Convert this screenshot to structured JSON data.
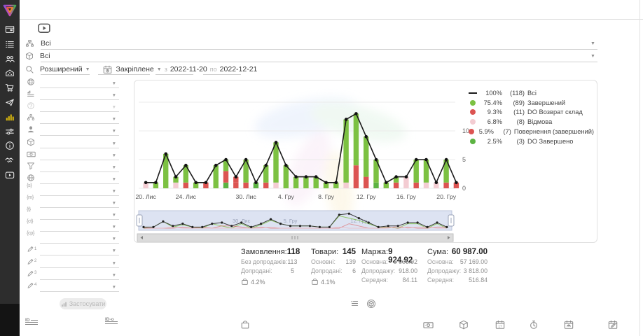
{
  "theme": {
    "sidebar_bg": "#2d2d2d",
    "active_icon": "#d9b70d",
    "line_color": "#1b1b1b",
    "green": "#7cc142",
    "dark_green": "#5cb342",
    "red": "#dc5452",
    "pink": "#f3ccd2",
    "minimap_bg": "#dde3f2"
  },
  "sidebar": {
    "logo": "app-logo",
    "items": [
      {
        "icon": "dashboard-panel-icon"
      },
      {
        "icon": "orders-list-icon"
      },
      {
        "icon": "clients-icon"
      },
      {
        "icon": "company-icon"
      },
      {
        "icon": "procurement-cart-icon"
      },
      {
        "icon": "marketing-send-icon"
      },
      {
        "icon": "analytics-chart-icon",
        "active": true
      },
      {
        "icon": "settings-sliders-icon"
      },
      {
        "icon": "info-icon"
      },
      {
        "icon": "partners-handshake-icon"
      },
      {
        "icon": "video-lessons-icon"
      }
    ]
  },
  "topbar": {
    "video_button_icon": "play-video-icon",
    "department_filter": {
      "icon": "department-structure-icon",
      "value": "Всі"
    },
    "product_filter": {
      "icon": "product-package-icon",
      "value": "Всі"
    },
    "search_mode": {
      "icon": "search-icon",
      "value": "Розширений"
    },
    "period_mode": {
      "icon": "calendar-pinned-icon",
      "value": "Закріплене"
    },
    "from_label": "з",
    "date_from": "2022-11-20",
    "to_label": "по",
    "date_to": "2022-12-21"
  },
  "filters": {
    "rows": [
      {
        "icon": "country-globe-icon"
      },
      {
        "icon": "status-group-icon"
      },
      {
        "icon": "help-circle-icon",
        "disabled": true
      },
      {
        "icon": "structure-tree-icon"
      },
      {
        "icon": "manager-person-icon"
      },
      {
        "icon": "product-package-icon"
      },
      {
        "icon": "payment-money-icon"
      },
      {
        "icon": "sales-funnel-icon"
      },
      {
        "icon": "website-globe-icon"
      },
      {
        "icon": "utm-source-icon",
        "glyph": "{s}"
      },
      {
        "icon": "utm-medium-icon",
        "glyph": "{m}"
      },
      {
        "icon": "utm-term-icon",
        "glyph": "{t}"
      },
      {
        "icon": "utm-content-icon",
        "glyph": "{ct}"
      },
      {
        "icon": "utm-campaign-icon",
        "glyph": "{cp}"
      },
      {
        "icon": "custom-field-1-icon",
        "num": "1"
      },
      {
        "icon": "custom-field-2-icon",
        "num": "2"
      },
      {
        "icon": "custom-field-3-icon",
        "num": "3"
      },
      {
        "icon": "custom-field-4-icon",
        "num": "4"
      }
    ],
    "apply_label": "Застосувати"
  },
  "chart_data": {
    "type": "bar+line",
    "x": [
      "2022-11-20",
      "2022-11-21",
      "2022-11-22",
      "2022-11-23",
      "2022-11-24",
      "2022-11-25",
      "2022-11-26",
      "2022-11-27",
      "2022-11-28",
      "2022-11-29",
      "2022-11-30",
      "2022-12-01",
      "2022-12-02",
      "2022-12-03",
      "2022-12-04",
      "2022-12-05",
      "2022-12-06",
      "2022-12-07",
      "2022-12-08",
      "2022-12-09",
      "2022-12-10",
      "2022-12-11",
      "2022-12-12",
      "2022-12-13",
      "2022-12-14",
      "2022-12-15",
      "2022-12-16",
      "2022-12-17",
      "2022-12-18",
      "2022-12-19",
      "2022-12-20",
      "2022-12-21"
    ],
    "x_tick_labels": [
      {
        "index": 0,
        "label": "20. Лис"
      },
      {
        "index": 4,
        "label": "24. Лис"
      },
      {
        "index": 10,
        "label": "30. Лис"
      },
      {
        "index": 14,
        "label": "4. Гру"
      },
      {
        "index": 18,
        "label": "8. Гру"
      },
      {
        "index": 22,
        "label": "12. Гру"
      },
      {
        "index": 26,
        "label": "16. Гру"
      },
      {
        "index": 30,
        "label": "20. Гру"
      }
    ],
    "yticks": [
      "0",
      "5",
      "10"
    ],
    "ylim": [
      0,
      15.5
    ],
    "line_series": {
      "name": "Всі",
      "color": "#1b1b1b",
      "values": [
        1,
        1,
        6,
        2,
        4,
        1,
        1,
        4,
        5,
        2,
        5,
        1,
        4,
        8,
        4,
        2,
        2,
        2,
        1,
        1,
        12,
        13,
        9,
        5,
        1,
        2,
        2,
        5,
        5,
        1,
        5,
        1
      ]
    },
    "bar_series": [
      {
        "name": "DO Завершено",
        "color": "#5cb342",
        "values": [
          0,
          0,
          0,
          0,
          0,
          0,
          0,
          0,
          1,
          0,
          0,
          1,
          0,
          0,
          0,
          0,
          0,
          0,
          0,
          0,
          0,
          0,
          0,
          1,
          0,
          0,
          0,
          0,
          0,
          0,
          0,
          0
        ]
      },
      {
        "name": "Відмова",
        "color": "#f3ccd2",
        "values": [
          1,
          0,
          0,
          1,
          0,
          0,
          0,
          0,
          0,
          0,
          0,
          0,
          0,
          1,
          0,
          0,
          0,
          0,
          0,
          0,
          1,
          0,
          0,
          0,
          0,
          0,
          2,
          0,
          1,
          1,
          0,
          0
        ]
      },
      {
        "name": "DO Возврат склад",
        "color": "#dc5452",
        "values": [
          0,
          0,
          0,
          0,
          1,
          0,
          0,
          0,
          2,
          1,
          1,
          0,
          0,
          0,
          0,
          0,
          0,
          0,
          0,
          0,
          0,
          4,
          2,
          0,
          0,
          0,
          0,
          0,
          0,
          0,
          0,
          0
        ]
      },
      {
        "name": "Повернення (завершений)",
        "color": "#dc5452",
        "values": [
          0,
          0,
          0,
          0,
          0,
          0,
          1,
          0,
          0,
          1,
          0,
          0,
          1,
          0,
          0,
          0,
          0,
          0,
          0,
          0,
          0,
          0,
          0,
          0,
          0,
          1,
          0,
          1,
          0,
          0,
          1,
          1
        ]
      },
      {
        "name": "Завершений",
        "color": "#7cc142",
        "values": [
          0,
          1,
          6,
          1,
          3,
          1,
          0,
          4,
          2,
          0,
          4,
          0,
          3,
          7,
          4,
          2,
          2,
          2,
          1,
          1,
          11,
          9,
          7,
          4,
          1,
          1,
          0,
          4,
          4,
          0,
          4,
          0
        ]
      }
    ],
    "legend": [
      {
        "swatch": "line",
        "color": "#1b1b1b",
        "percent": "100%",
        "count": "(118)",
        "label": "Всі"
      },
      {
        "swatch": "dot",
        "color": "#7cc142",
        "percent": "75.4%",
        "count": "(89)",
        "label": "Завершений"
      },
      {
        "swatch": "dot",
        "color": "#dc5452",
        "percent": "9.3%",
        "count": "(11)",
        "label": "DO Возврат склад"
      },
      {
        "swatch": "dot",
        "color": "#f3ccd2",
        "percent": "6.8%",
        "count": "(8)",
        "label": "Відмова"
      },
      {
        "swatch": "dot",
        "color": "#dc5452",
        "percent": "5.9%",
        "count": "(7)",
        "label": "Повернення (завершений)"
      },
      {
        "swatch": "dot",
        "color": "#5cb342",
        "percent": "2.5%",
        "count": "(3)",
        "label": "DO Завершено"
      }
    ],
    "minimap_labels": [
      {
        "index": 10,
        "label": "30. Лис"
      },
      {
        "index": 15,
        "label": "5. Гру"
      },
      {
        "index": 22,
        "label": "12. Гру"
      }
    ]
  },
  "summary": {
    "columns": [
      {
        "title": "Замовлення:",
        "value": "118",
        "rows": [
          {
            "label": "Без допродажів:",
            "value": "113"
          },
          {
            "label": "Допродані:",
            "value": "5"
          }
        ],
        "rate": "4.2%",
        "rate_icon": "upsell-bag-icon"
      },
      {
        "title": "Товари:",
        "value": "145",
        "rows": [
          {
            "label": "Основні:",
            "value": "139"
          },
          {
            "label": "Допродані:",
            "value": "6"
          }
        ],
        "rate": "4.1%",
        "rate_icon": "upsell-bag-icon"
      },
      {
        "title": "Маржа:",
        "value": "9 924.92",
        "rows": [
          {
            "label": "Основна:",
            "value": "9 006.92"
          },
          {
            "label": "Допродажу:",
            "value": "918.00"
          },
          {
            "label": "Середня:",
            "value": "84.11"
          }
        ]
      },
      {
        "title": "Сума:",
        "value": "60 987.00",
        "rows": [
          {
            "label": "Основна:",
            "value": "57 169.00"
          },
          {
            "label": "Допродажу:",
            "value": "3 818.00"
          },
          {
            "label": "Середня:",
            "value": "516.84"
          }
        ]
      }
    ],
    "view_icons": [
      "summary-list-icon",
      "summary-product-icon"
    ]
  },
  "footer": {
    "icons": [
      "order-ids-icon",
      "product-ids-icon",
      "bag-icon",
      "payments-money-icon",
      "products-package-icon",
      "calendar-date-icon",
      "time-clock-icon",
      "calendar-reserved-icon",
      "calendar-edit-icon"
    ]
  }
}
